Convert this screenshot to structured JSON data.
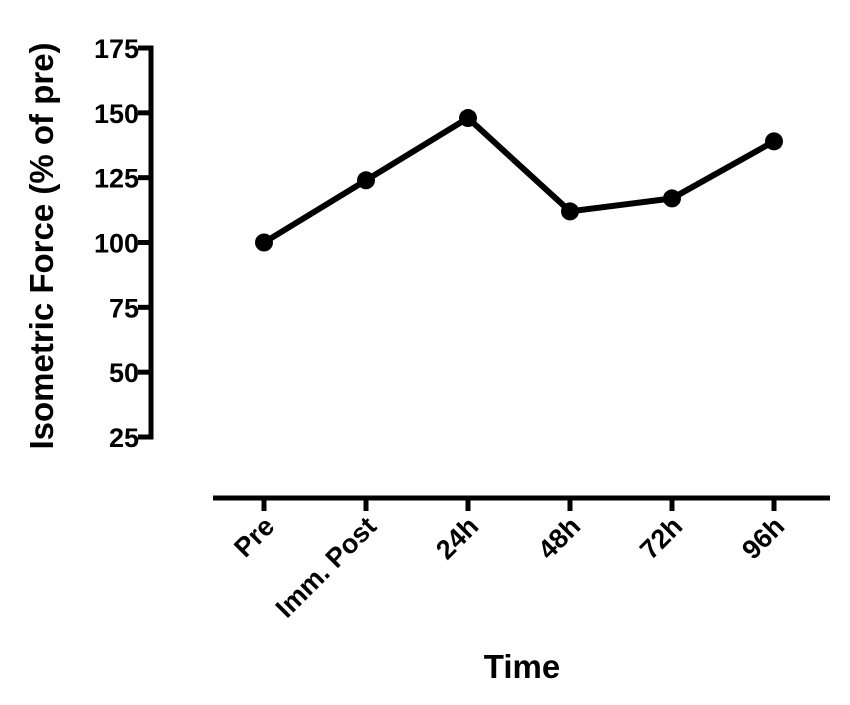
{
  "chart_data": {
    "type": "line",
    "title": "",
    "xlabel": "Time",
    "ylabel": "Isometric Force (% of pre)",
    "categories": [
      "Pre",
      "Imm. Post",
      "24h",
      "48h",
      "72h",
      "96h"
    ],
    "series": [
      {
        "values": [
          100,
          124,
          148,
          112,
          117,
          139
        ]
      }
    ],
    "ylim": [
      25,
      175
    ],
    "yticks": [
      25,
      50,
      75,
      100,
      125,
      150,
      175
    ],
    "grid": false,
    "legend": "none",
    "color": "#000000"
  }
}
